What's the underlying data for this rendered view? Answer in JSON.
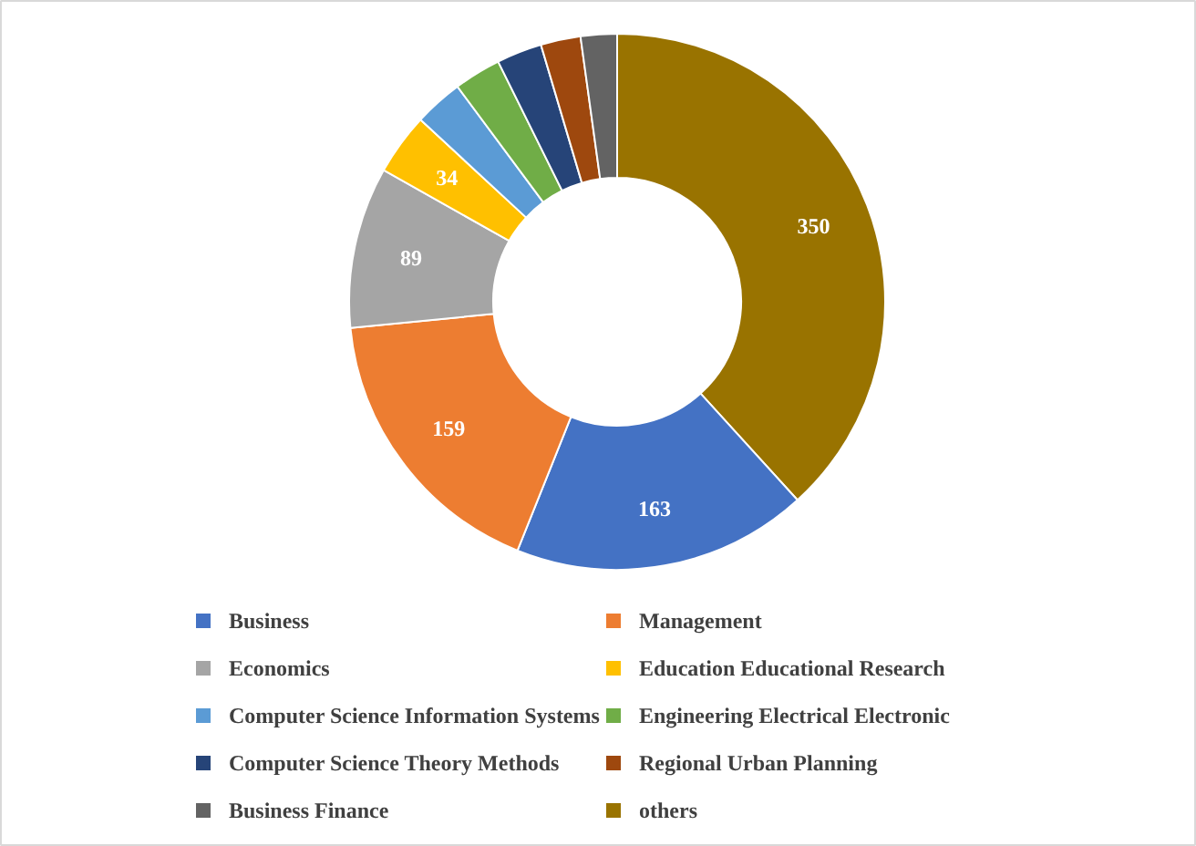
{
  "chart_data": {
    "type": "donut",
    "categories": [
      "Business",
      "Management",
      "Economics",
      "Education Educational Research",
      "Computer Science Information Systems",
      "Engineering Electrical Electronic",
      "Computer Science Theory Methods",
      "Regional Urban Planning",
      "Business Finance",
      "others"
    ],
    "values": [
      163,
      159,
      89,
      34,
      27,
      26,
      25,
      22,
      20,
      350
    ],
    "colors": [
      "#4472c4",
      "#ed7d31",
      "#a5a5a5",
      "#ffc000",
      "#5b9bd5",
      "#70ad47",
      "#264478",
      "#9e480e",
      "#636363",
      "#997300"
    ],
    "value_labels": [
      "163",
      "159",
      "89",
      "34",
      null,
      null,
      null,
      null,
      null,
      "350"
    ],
    "legend": "bottom"
  }
}
